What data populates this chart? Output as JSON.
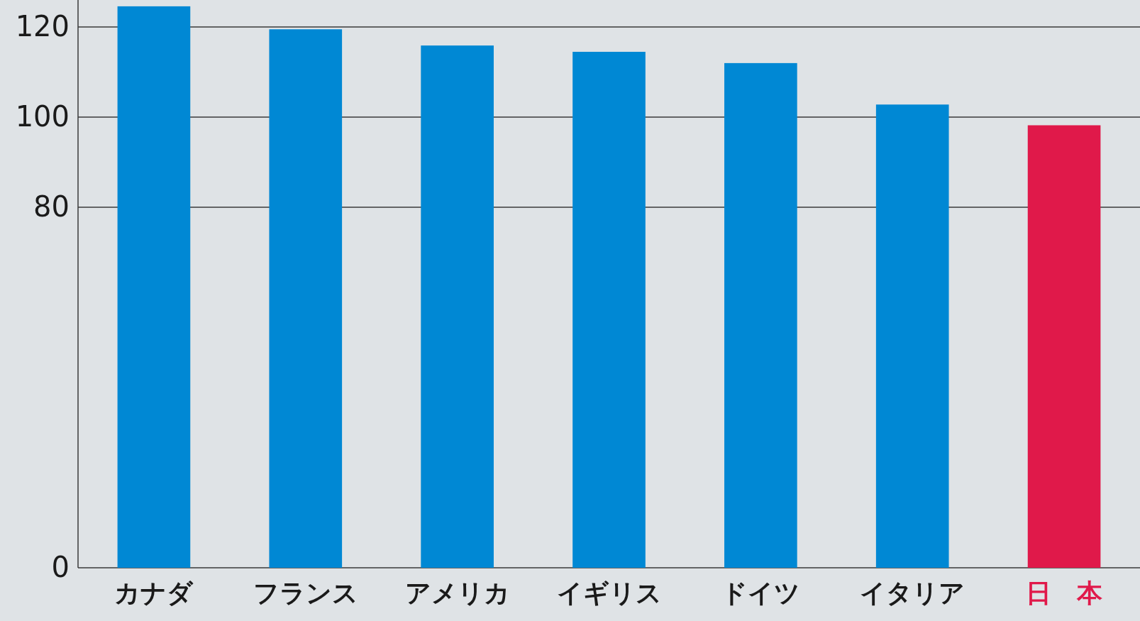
{
  "chart_data": {
    "type": "bar",
    "categories": [
      "カナダ",
      "フランス",
      "アメリカ",
      "イギリス",
      "ドイツ",
      "イタリア",
      "日　本"
    ],
    "values": [
      124.6,
      119.5,
      115.9,
      114.5,
      112.0,
      102.8,
      98.2
    ],
    "colors": [
      "#0088d4",
      "#0088d4",
      "#0088d4",
      "#0088d4",
      "#0088d4",
      "#0088d4",
      "#e0194a"
    ],
    "ylim": [
      0,
      126
    ],
    "yticks": [
      0,
      80,
      100,
      120
    ],
    "grid": "y"
  }
}
